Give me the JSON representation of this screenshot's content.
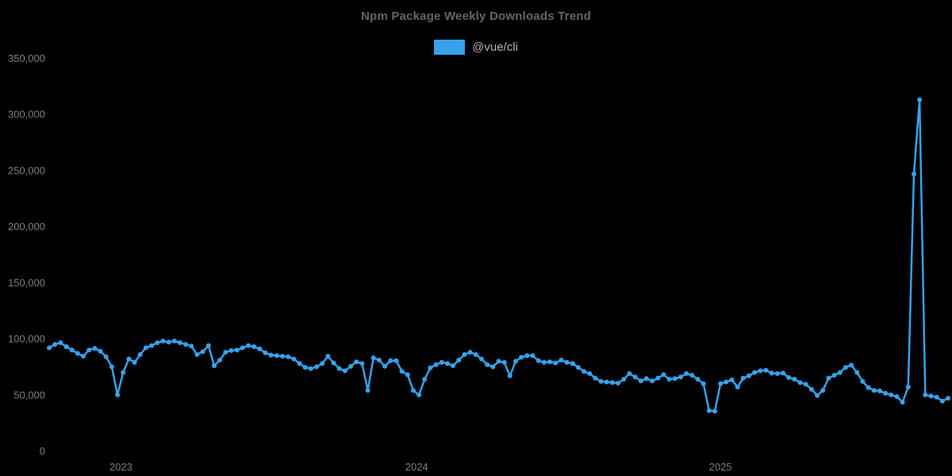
{
  "title": "Npm Package Weekly Downloads Trend",
  "legend": {
    "position": "top",
    "items": [
      {
        "label": "@vue/cli",
        "color": "#36a2eb"
      }
    ]
  },
  "colors": {
    "background": "#000000",
    "title": "#666666",
    "legend_text": "#b3b3b3",
    "tick_text": "#7f7f7f",
    "series": "#36a2eb"
  },
  "chart_data": {
    "type": "line",
    "title": "Npm Package Weekly Downloads Trend",
    "x_unit": "week",
    "x_range_note": "weekly points from late 2022 to late 2025",
    "grid": false,
    "legend_position": "top",
    "point_markers": true,
    "ylim": [
      0,
      350000
    ],
    "y_ticks": [
      0,
      50000,
      100000,
      150000,
      200000,
      250000,
      300000,
      350000
    ],
    "x_tick_labels": [
      {
        "label": "2023",
        "week_index": 12.6
      },
      {
        "label": "2024",
        "week_index": 64.6
      },
      {
        "label": "2025",
        "week_index": 118.0
      }
    ],
    "series": [
      {
        "name": "@vue/cli",
        "color": "#36a2eb",
        "values": [
          92000,
          95000,
          96500,
          93000,
          90000,
          87000,
          84500,
          90000,
          91500,
          89000,
          84000,
          75000,
          50000,
          70000,
          82000,
          79000,
          86000,
          92000,
          94000,
          96500,
          98000,
          97000,
          98000,
          96500,
          95000,
          93500,
          86000,
          88500,
          94000,
          76000,
          81000,
          88000,
          89500,
          90000,
          92000,
          94000,
          93000,
          91000,
          87500,
          85500,
          85000,
          84500,
          84000,
          82000,
          78000,
          74500,
          73500,
          75000,
          78000,
          84500,
          78500,
          73500,
          71500,
          75500,
          79500,
          78000,
          54000,
          83000,
          81000,
          75500,
          80500,
          80500,
          71000,
          68000,
          54000,
          50000,
          64000,
          74000,
          77000,
          79000,
          78000,
          76000,
          81000,
          86000,
          88000,
          86000,
          82000,
          77000,
          75000,
          80000,
          79000,
          67000,
          80000,
          83500,
          85000,
          85000,
          80500,
          79000,
          79500,
          78500,
          81000,
          79000,
          78000,
          74500,
          71000,
          69000,
          65000,
          62000,
          61500,
          61000,
          60500,
          64000,
          69000,
          66000,
          62500,
          64500,
          62500,
          65000,
          68000,
          64000,
          64500,
          66000,
          69000,
          67500,
          64000,
          60000,
          36000,
          35500,
          60000,
          61500,
          63500,
          57000,
          65000,
          67000,
          70000,
          71500,
          72000,
          69500,
          69000,
          69500,
          65500,
          64000,
          61000,
          59500,
          55000,
          49500,
          54000,
          65000,
          67500,
          70000,
          74500,
          76500,
          70000,
          62000,
          56500,
          54000,
          53500,
          51500,
          50000,
          48500,
          43500,
          57000,
          247000,
          313000,
          50000,
          49000,
          48000,
          44500,
          47000
        ]
      }
    ]
  }
}
